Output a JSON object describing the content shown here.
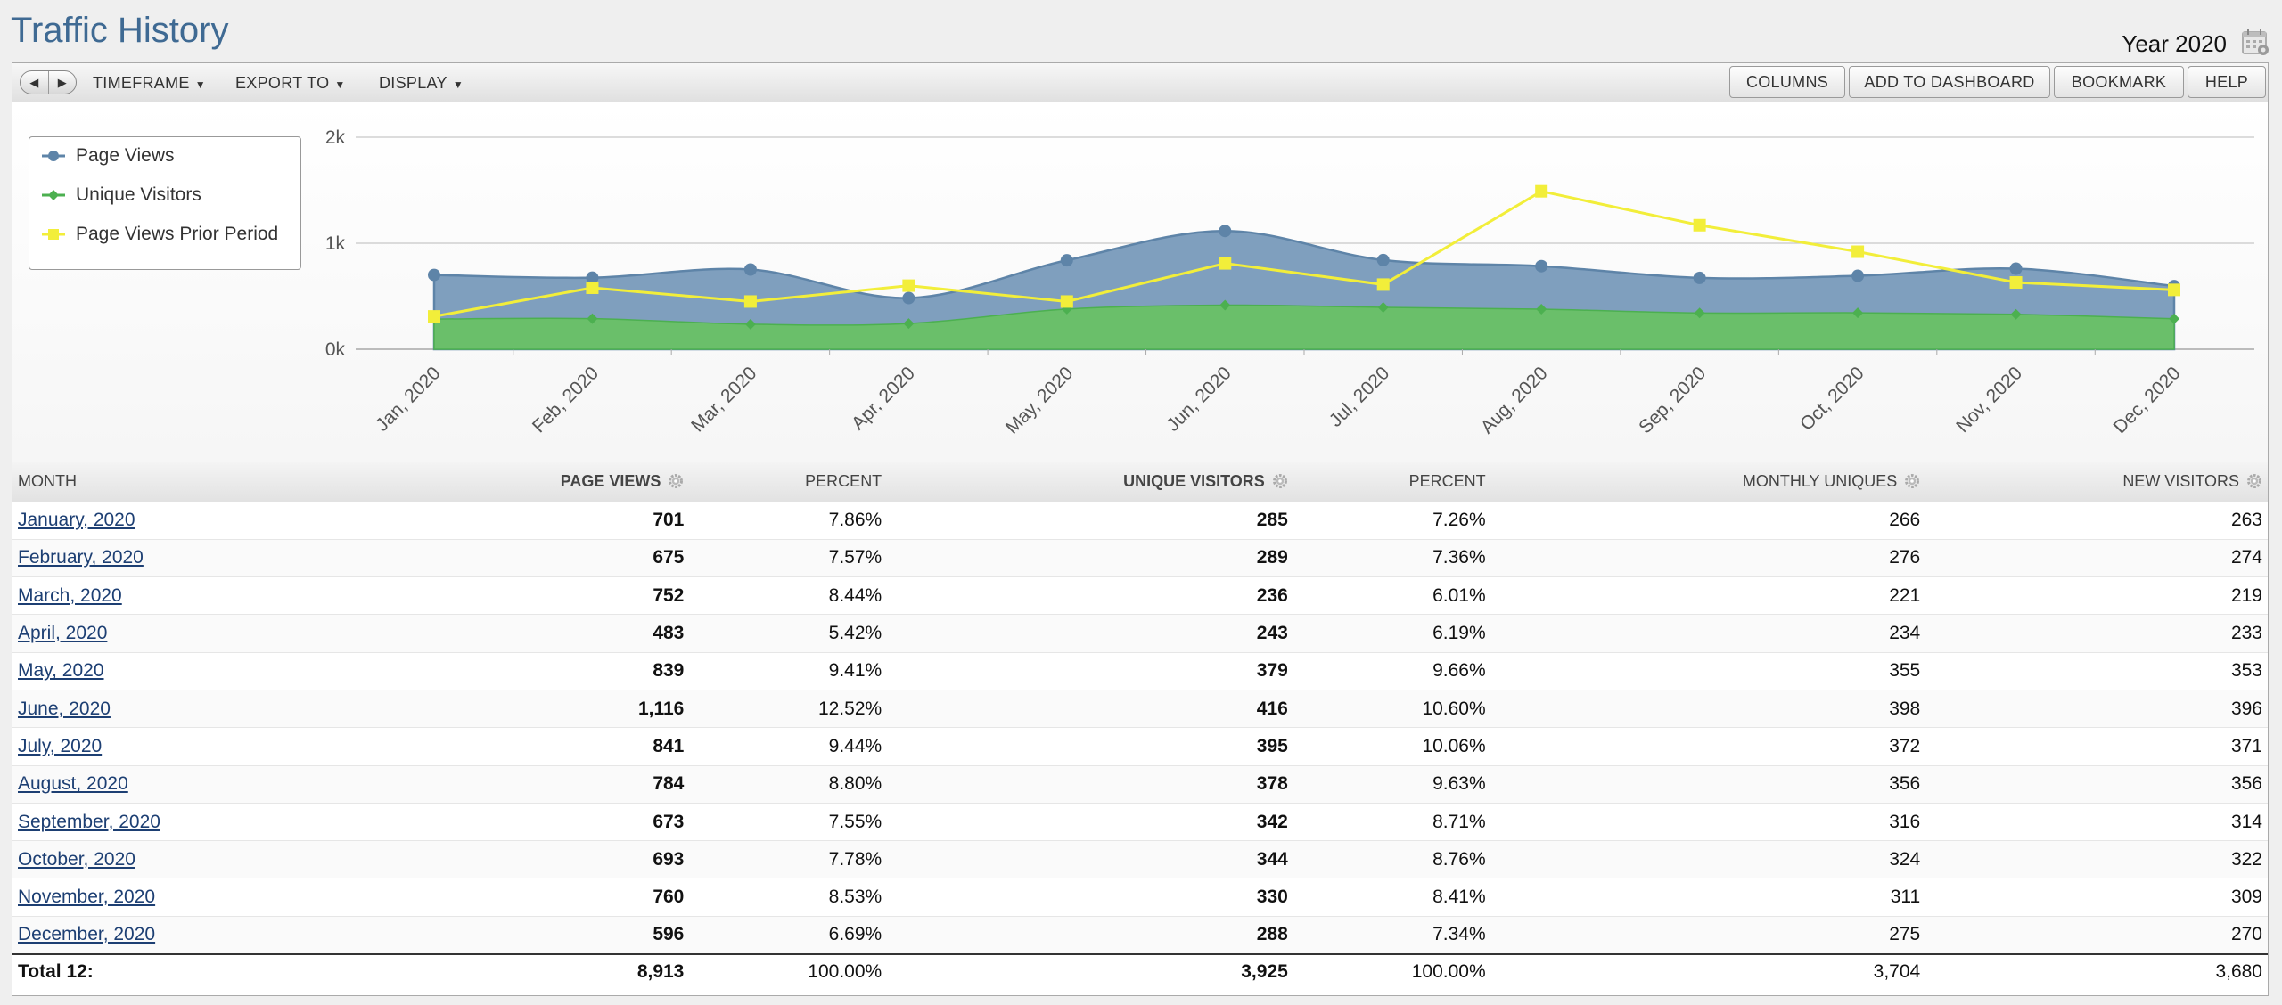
{
  "header": {
    "title": "Traffic History",
    "period": "Year 2020",
    "calendar_icon": "calendar-icon"
  },
  "toolbar": {
    "menus": [
      "TIMEFRAME",
      "EXPORT TO",
      "DISPLAY"
    ],
    "buttons": [
      "COLUMNS",
      "ADD TO DASHBOARD",
      "BOOKMARK",
      "HELP"
    ]
  },
  "legend": [
    "Page Views",
    "Unique Visitors",
    "Page Views Prior Period"
  ],
  "chart_data": {
    "type": "area",
    "categories": [
      "Jan, 2020",
      "Feb, 2020",
      "Mar, 2020",
      "Apr, 2020",
      "May, 2020",
      "Jun, 2020",
      "Jul, 2020",
      "Aug, 2020",
      "Sep, 2020",
      "Oct, 2020",
      "Nov, 2020",
      "Dec, 2020"
    ],
    "yticks": [
      "0k",
      "1k",
      "2k"
    ],
    "ylim": [
      0,
      2000
    ],
    "grid": true,
    "legend_position": "top-left",
    "series": [
      {
        "name": "Page Views",
        "type": "area",
        "color": "#5e84a8",
        "fill": "#7f9fbe",
        "values": [
          701,
          675,
          752,
          483,
          839,
          1116,
          841,
          784,
          673,
          693,
          760,
          596
        ]
      },
      {
        "name": "Unique Visitors",
        "type": "area",
        "color": "#4cb050",
        "fill": "#6abf6a",
        "values": [
          285,
          289,
          236,
          243,
          379,
          416,
          395,
          378,
          342,
          344,
          330,
          288
        ]
      },
      {
        "name": "Page Views Prior Period",
        "type": "line",
        "color": "#f2ee3a",
        "values": [
          310,
          580,
          450,
          600,
          450,
          810,
          610,
          1490,
          1170,
          920,
          630,
          560
        ]
      }
    ]
  },
  "table": {
    "headers": [
      "MONTH",
      "PAGE VIEWS",
      "PERCENT",
      "UNIQUE VISITORS",
      "PERCENT",
      "MONTHLY UNIQUES",
      "NEW VISITORS"
    ],
    "rows": [
      [
        "January, 2020",
        "701",
        "7.86%",
        "285",
        "7.26%",
        "266",
        "263"
      ],
      [
        "February, 2020",
        "675",
        "7.57%",
        "289",
        "7.36%",
        "276",
        "274"
      ],
      [
        "March, 2020",
        "752",
        "8.44%",
        "236",
        "6.01%",
        "221",
        "219"
      ],
      [
        "April, 2020",
        "483",
        "5.42%",
        "243",
        "6.19%",
        "234",
        "233"
      ],
      [
        "May, 2020",
        "839",
        "9.41%",
        "379",
        "9.66%",
        "355",
        "353"
      ],
      [
        "June, 2020",
        "1,116",
        "12.52%",
        "416",
        "10.60%",
        "398",
        "396"
      ],
      [
        "July, 2020",
        "841",
        "9.44%",
        "395",
        "10.06%",
        "372",
        "371"
      ],
      [
        "August, 2020",
        "784",
        "8.80%",
        "378",
        "9.63%",
        "356",
        "356"
      ],
      [
        "September, 2020",
        "673",
        "7.55%",
        "342",
        "8.71%",
        "316",
        "314"
      ],
      [
        "October, 2020",
        "693",
        "7.78%",
        "344",
        "8.76%",
        "324",
        "322"
      ],
      [
        "November, 2020",
        "760",
        "8.53%",
        "330",
        "8.41%",
        "311",
        "309"
      ],
      [
        "December, 2020",
        "596",
        "6.69%",
        "288",
        "7.34%",
        "275",
        "270"
      ]
    ],
    "total": [
      "Total 12:",
      "8,913",
      "100.00%",
      "3,925",
      "100.00%",
      "3,704",
      "3,680"
    ]
  }
}
